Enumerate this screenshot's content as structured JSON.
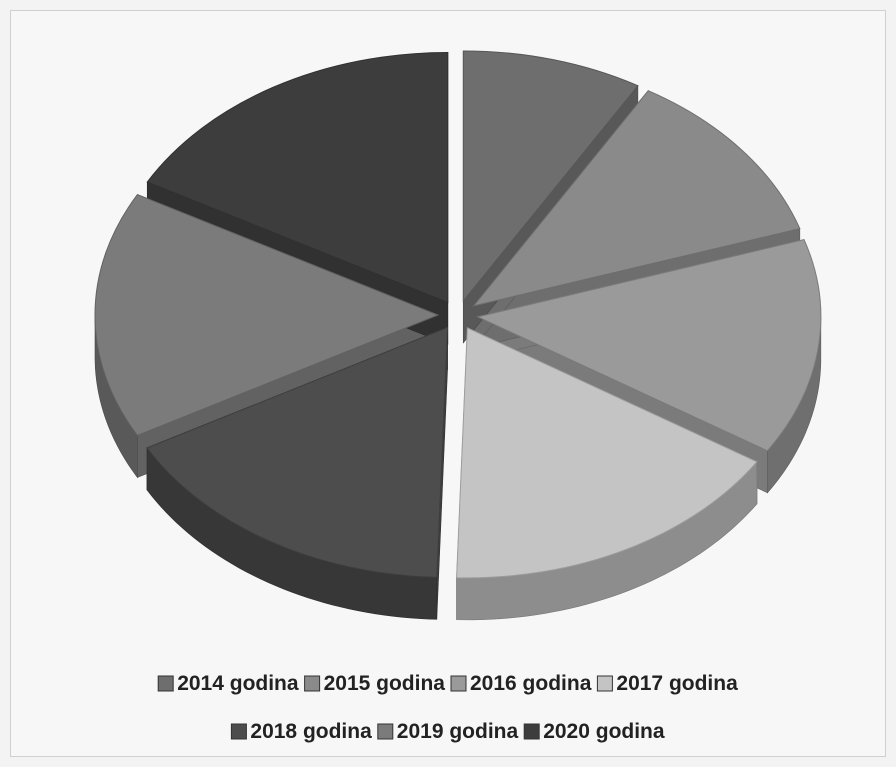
{
  "chart_data": {
    "type": "pie",
    "style": "3d-exploded",
    "title": "",
    "categories": [
      "2014 godina",
      "2015 godina",
      "2016 godina",
      "2017 godina",
      "2018 godina",
      "2019 godina",
      "2020 godina"
    ],
    "values": [
      8.5,
      11.5,
      14.0,
      16.5,
      16.5,
      16.0,
      17.0
    ],
    "colors": [
      "#6e6e6e",
      "#8a8a8a",
      "#9a9a9a",
      "#c4c4c4",
      "#4d4d4d",
      "#7b7b7b",
      "#3d3d3d"
    ],
    "start_angle": "12 o'clock",
    "direction": "clockwise",
    "legend_position": "bottom"
  }
}
